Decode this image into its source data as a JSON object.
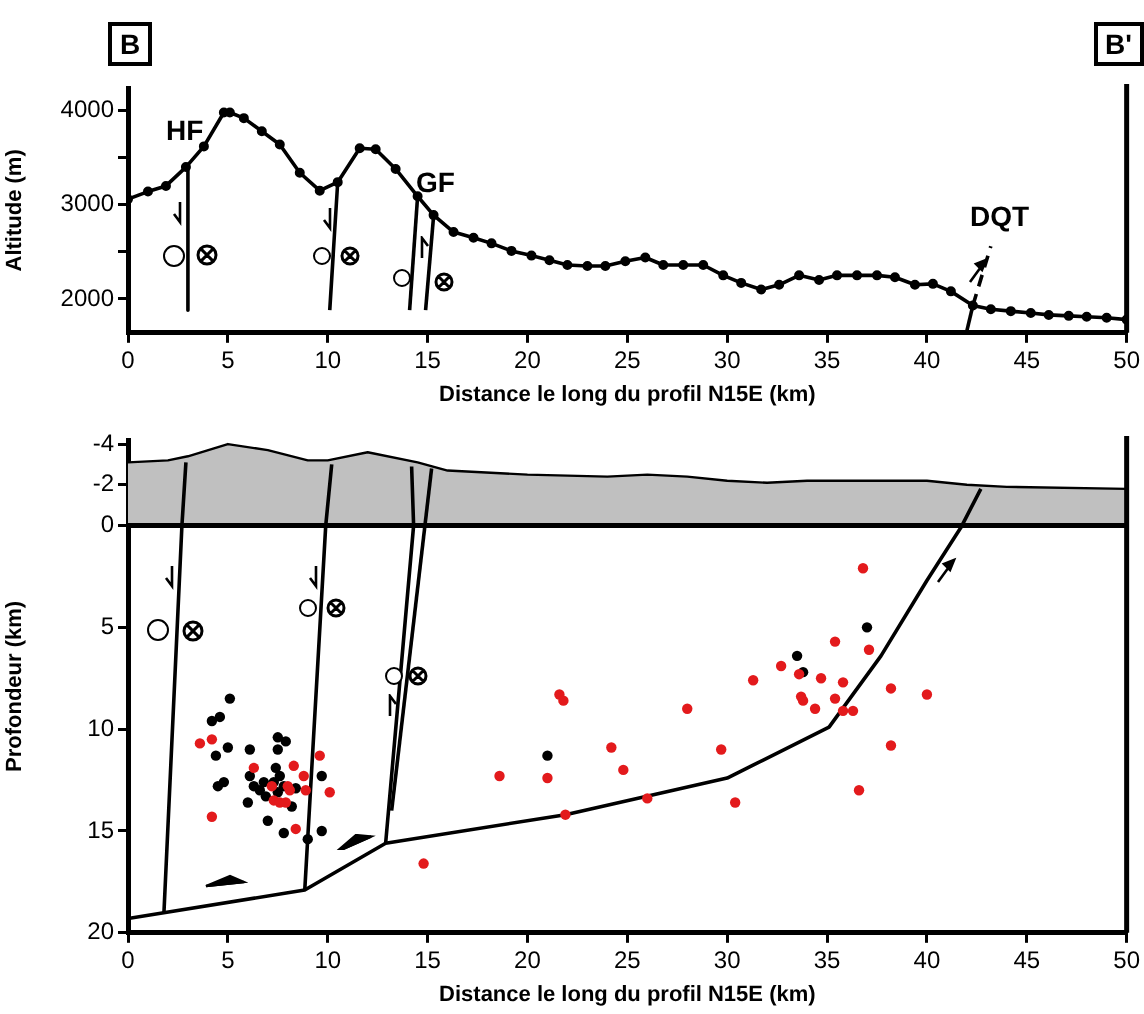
{
  "chart_data": [
    {
      "type": "line",
      "xlabel": "Distance le long du profil N15E (km)",
      "ylabel": "Altitude (m)",
      "xlim": [
        0,
        50
      ],
      "xticks": [
        0,
        5,
        10,
        15,
        20,
        25,
        30,
        35,
        40,
        45,
        50
      ],
      "ylim": [
        1640,
        4240
      ],
      "yticks": [
        2000,
        {
          "value": 2500,
          "label": null
        },
        3000,
        {
          "value": 3500,
          "label": null
        },
        4000
      ],
      "grid": false,
      "legend": false,
      "annotations": [
        "B",
        "B'",
        "HF",
        "GF",
        "DQT"
      ],
      "series": [
        {
          "color": "#000000",
          "marker": "circle",
          "x": [
            0,
            1.0,
            1.9,
            2.9,
            3.8,
            4.8,
            5.1,
            5.8,
            6.7,
            7.6,
            8.6,
            9.6,
            10.5,
            11.6,
            12.4,
            13.4,
            14.5,
            15.3,
            16.3,
            17.3,
            18.2,
            19.2,
            20.2,
            21.1,
            22.0,
            23.0,
            23.9,
            24.9,
            25.9,
            26.8,
            27.8,
            28.8,
            29.8,
            30.7,
            31.7,
            32.6,
            33.6,
            34.6,
            35.5,
            36.5,
            37.5,
            38.4,
            39.4,
            40.3,
            41.2,
            42.3,
            43.2,
            44.2,
            45.2,
            46.1,
            47.1,
            48.0,
            49.0,
            50.0
          ],
          "values": [
            3060,
            3140,
            3200,
            3400,
            3620,
            3980,
            3980,
            3920,
            3780,
            3640,
            3340,
            3150,
            3240,
            3600,
            3590,
            3380,
            3090,
            2890,
            2710,
            2650,
            2590,
            2510,
            2460,
            2410,
            2360,
            2350,
            2350,
            2400,
            2440,
            2360,
            2360,
            2360,
            2250,
            2170,
            2100,
            2150,
            2250,
            2200,
            2250,
            2250,
            2250,
            2230,
            2150,
            2160,
            2080,
            1930,
            1890,
            1870,
            1850,
            1830,
            1820,
            1810,
            1800,
            1780
          ]
        },
        {
          "color": "#000000",
          "marker": "none",
          "x": [
            3.0,
            3.0
          ],
          "values": [
            3400,
            1880
          ]
        },
        {
          "color": "#000000",
          "marker": "none",
          "x": [
            10.5,
            10.1
          ],
          "values": [
            3240,
            1880
          ]
        },
        {
          "color": "#000000",
          "marker": "none",
          "x": [
            14.5,
            14.1
          ],
          "values": [
            3090,
            1880
          ]
        },
        {
          "color": "#000000",
          "marker": "none",
          "x": [
            15.3,
            14.9
          ],
          "values": [
            2880,
            1880
          ]
        },
        {
          "color": "#000000",
          "marker": "none",
          "x": [
            42.0,
            42.3
          ],
          "values": [
            1660,
            1930
          ]
        },
        {
          "color": "#000000",
          "marker": "none",
          "line_style": "dashed",
          "x": [
            42.3,
            43.2
          ],
          "values": [
            1930,
            2560
          ]
        }
      ]
    },
    {
      "type": "scatter",
      "xlabel": "Distance le long du profil N15E (km)",
      "ylabel": "Profondeur (km)",
      "xlim": [
        0,
        50
      ],
      "xticks": [
        0,
        5,
        10,
        15,
        20,
        25,
        30,
        35,
        40,
        45,
        50
      ],
      "ylim": [
        20,
        -4.2
      ],
      "yticks": [
        -4,
        -2,
        0,
        5,
        10,
        15,
        20
      ],
      "grid": false,
      "legend": false,
      "ref_lines": [
        {
          "axis": "y",
          "value": 0
        }
      ],
      "series": [
        {
          "type": "area",
          "color": "#c0c0c0",
          "x": [
            0,
            2,
            3,
            5,
            7,
            9,
            10,
            12,
            14.5,
            16,
            20,
            24,
            26,
            28,
            30,
            32,
            34,
            36,
            38,
            40,
            42,
            44,
            50
          ],
          "values": [
            -3.1,
            -3.2,
            -3.4,
            -4.0,
            -3.7,
            -3.2,
            -3.2,
            -3.6,
            -3.1,
            -2.7,
            -2.5,
            -2.4,
            -2.5,
            -2.4,
            -2.2,
            -2.1,
            -2.2,
            -2.2,
            -2.2,
            -2.2,
            -2.0,
            -1.9,
            -1.8
          ]
        },
        {
          "type": "line",
          "color": "#000000",
          "x": [
            0,
            8.85,
            12.9,
            21.9,
            30.0,
            35.1,
            37.7,
            40.0,
            41.7,
            42.7
          ],
          "values": [
            19.3,
            17.9,
            15.6,
            14.2,
            12.4,
            9.9,
            6.4,
            2.7,
            0.1,
            -1.8
          ]
        },
        {
          "type": "line",
          "color": "#000000",
          "x": [
            1.8,
            2.7,
            2.9
          ],
          "values": [
            19.0,
            0,
            -3.1
          ]
        },
        {
          "type": "line",
          "color": "#000000",
          "x": [
            8.85,
            9.9,
            10.2
          ],
          "values": [
            17.9,
            0,
            -3.0
          ]
        },
        {
          "type": "line",
          "color": "#000000",
          "x": [
            12.9,
            14.3,
            14.2
          ],
          "values": [
            15.6,
            0,
            -2.9
          ]
        },
        {
          "type": "line",
          "color": "#000000",
          "x": [
            13.2,
            15.2
          ],
          "values": [
            14.0,
            -2.8
          ]
        },
        {
          "color": "#000000",
          "x": [
            4.2,
            4.6,
            5.1,
            5.0,
            4.4,
            6.1,
            7.5,
            7.9,
            7.5,
            4.5,
            4.8,
            6.0,
            6.1,
            6.3,
            6.6,
            6.8,
            6.9,
            7.0,
            7.3,
            7.4,
            7.6,
            7.8,
            7.5,
            7.8,
            8.2,
            8.4,
            9.0,
            9.7,
            9.7,
            21.0,
            33.5,
            33.8,
            37.0
          ],
          "values": [
            9.6,
            9.4,
            8.5,
            10.9,
            11.3,
            11.0,
            10.4,
            10.6,
            11.0,
            12.8,
            12.6,
            13.6,
            12.3,
            12.8,
            13.0,
            12.6,
            13.3,
            14.5,
            12.6,
            11.9,
            12.3,
            12.8,
            13.1,
            15.1,
            13.8,
            12.9,
            15.4,
            12.3,
            15.0,
            11.3,
            6.4,
            7.2,
            5.0
          ]
        },
        {
          "color": "#e31a1c",
          "x": [
            3.6,
            4.2,
            4.2,
            6.3,
            7.2,
            7.3,
            7.6,
            7.9,
            8.0,
            8.1,
            8.3,
            8.4,
            8.8,
            8.9,
            9.6,
            10.1,
            14.8,
            18.6,
            21.0,
            21.6,
            21.8,
            21.9,
            24.2,
            24.8,
            26.0,
            28.0,
            29.7,
            30.4,
            31.3,
            32.7,
            33.6,
            33.7,
            33.8,
            34.7,
            34.4,
            35.4,
            35.4,
            35.8,
            35.8,
            36.3,
            36.6,
            36.8,
            37.1,
            38.2,
            38.2,
            40.0
          ],
          "values": [
            10.7,
            10.5,
            14.3,
            11.9,
            12.8,
            13.5,
            13.6,
            13.6,
            12.8,
            13.0,
            11.8,
            14.9,
            12.3,
            13.0,
            11.3,
            13.1,
            16.6,
            12.3,
            12.4,
            8.3,
            8.6,
            14.2,
            10.9,
            12.0,
            13.4,
            9.0,
            11.0,
            13.6,
            7.6,
            6.9,
            7.3,
            8.4,
            8.6,
            7.5,
            9.0,
            5.7,
            8.5,
            7.7,
            9.1,
            9.1,
            13.0,
            2.1,
            6.1,
            8.0,
            10.8,
            8.3
          ]
        }
      ]
    }
  ]
}
